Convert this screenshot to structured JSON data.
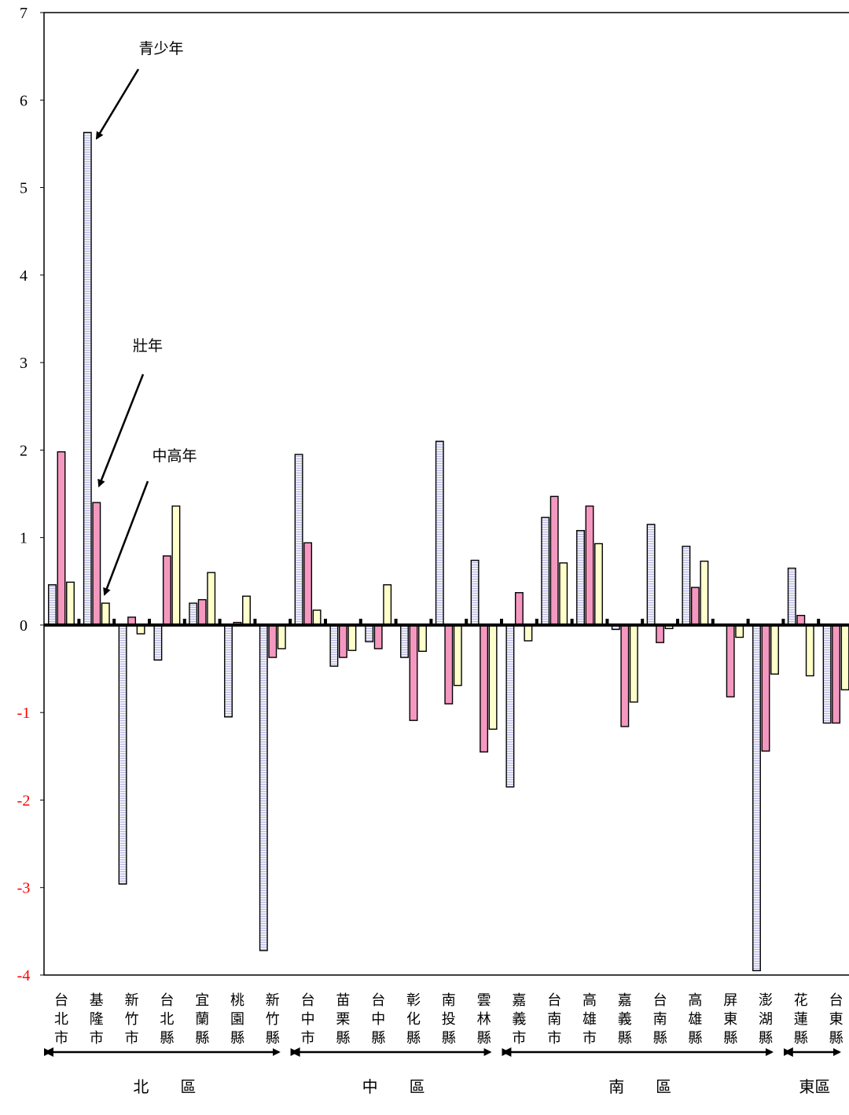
{
  "chart_data": {
    "type": "bar",
    "title": "",
    "xlabel": "",
    "ylabel": "",
    "ylim": [
      -4,
      7
    ],
    "yticks": [
      "7",
      "6",
      "5",
      "4",
      "3",
      "2",
      "1",
      "0",
      "-1",
      "-2",
      "-3",
      "-4"
    ],
    "grid": false,
    "categories": [
      "台北市",
      "基隆市",
      "新竹市",
      "台北縣",
      "宜蘭縣",
      "桃園縣",
      "新竹縣",
      "台中市",
      "苗栗縣",
      "台中縣",
      "彰化縣",
      "南投縣",
      "雲林縣",
      "嘉義市",
      "台南市",
      "高雄市",
      "嘉義縣",
      "台南縣",
      "高雄縣",
      "屏東縣",
      "澎湖縣",
      "花蓮縣",
      "台東縣"
    ],
    "series": [
      {
        "name": "青少年",
        "color": "#e0e0f4",
        "values": [
          0.46,
          5.63,
          -2.96,
          -0.4,
          0.25,
          -1.05,
          -3.72,
          1.95,
          -0.47,
          -0.19,
          -0.37,
          2.1,
          0.74,
          -1.85,
          1.23,
          1.08,
          -0.05,
          1.15,
          0.9,
          0.01,
          -3.95,
          0.65,
          -1.12
        ]
      },
      {
        "name": "壯年",
        "color": "#f598c0",
        "values": [
          1.98,
          1.4,
          0.09,
          0.79,
          0.29,
          0.03,
          -0.37,
          0.94,
          -0.37,
          -0.27,
          -1.09,
          -0.9,
          -1.45,
          0.37,
          1.47,
          1.36,
          -1.16,
          -0.2,
          0.43,
          -0.82,
          -1.44,
          0.11,
          -1.12
        ]
      },
      {
        "name": "中高年",
        "color": "#ffffcc",
        "values": [
          0.49,
          0.25,
          -0.1,
          1.36,
          0.6,
          0.33,
          -0.27,
          0.17,
          -0.29,
          0.46,
          -0.3,
          -0.69,
          -1.19,
          -0.18,
          0.71,
          0.93,
          -0.88,
          -0.04,
          0.73,
          -0.14,
          -0.56,
          -0.58,
          -0.74
        ]
      }
    ],
    "annotations": [
      "青少年",
      "壯年",
      "中高年"
    ],
    "regions": [
      {
        "label": "北　　區",
        "from": 0,
        "to": 6
      },
      {
        "label": "中　　區",
        "from": 7,
        "to": 12
      },
      {
        "label": "南　　區",
        "from": 13,
        "to": 20
      },
      {
        "label": "東區",
        "from": 21,
        "to": 22
      }
    ],
    "colors": {
      "negative_tick": "#ff0000",
      "positive_tick": "#000000"
    }
  }
}
